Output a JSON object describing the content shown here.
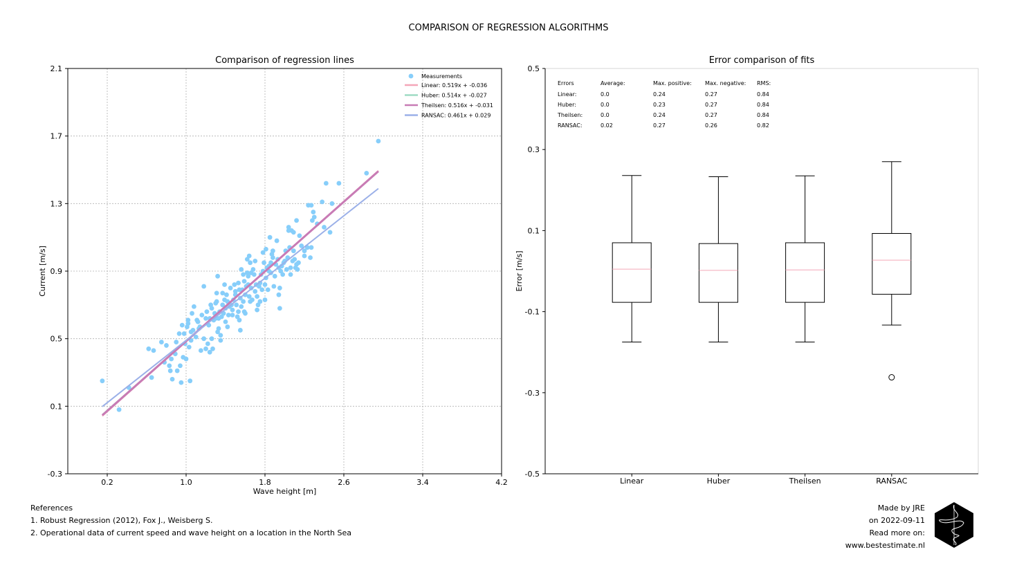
{
  "suptitle": "COMPARISON OF REGRESSION ALGORITHMS",
  "chart_data": [
    {
      "type": "scatter",
      "title": "Comparison of regression lines",
      "xlabel": "Wave height [m]",
      "ylabel": "Current [m/s]",
      "xlim": [
        -0.2,
        4.2
      ],
      "ylim": [
        -0.3,
        2.1
      ],
      "xticks": [
        "0.2",
        "1.0",
        "1.8",
        "2.6",
        "3.4",
        "4.2"
      ],
      "xtick_values": [
        0.2,
        1.0,
        1.8,
        2.6,
        3.4,
        4.2
      ],
      "yticks": [
        "-0.3",
        "0.1",
        "0.5",
        "0.9",
        "1.3",
        "1.7",
        "2.1"
      ],
      "ytick_values": [
        -0.3,
        0.1,
        0.5,
        0.9,
        1.3,
        1.7,
        2.1
      ],
      "grid": true,
      "legend_position": "top-right",
      "scatter_series": {
        "name": "Measurements",
        "color": "#87cefa"
      },
      "points": [
        [
          0.15,
          0.25
        ],
        [
          0.32,
          0.08
        ],
        [
          0.42,
          0.21
        ],
        [
          0.62,
          0.44
        ],
        [
          0.65,
          0.27
        ],
        [
          0.67,
          0.43
        ],
        [
          0.75,
          0.48
        ],
        [
          0.78,
          0.36
        ],
        [
          0.8,
          0.46
        ],
        [
          0.83,
          0.34
        ],
        [
          0.84,
          0.31
        ],
        [
          0.85,
          0.38
        ],
        [
          0.86,
          0.26
        ],
        [
          0.89,
          0.41
        ],
        [
          0.9,
          0.48
        ],
        [
          0.91,
          0.31
        ],
        [
          0.93,
          0.53
        ],
        [
          0.94,
          0.34
        ],
        [
          0.95,
          0.24
        ],
        [
          0.96,
          0.58
        ],
        [
          0.97,
          0.39
        ],
        [
          0.98,
          0.53
        ],
        [
          0.99,
          0.47
        ],
        [
          1.0,
          0.38
        ],
        [
          1.01,
          0.57
        ],
        [
          1.02,
          0.61
        ],
        [
          1.02,
          0.59
        ],
        [
          1.03,
          0.45
        ],
        [
          1.04,
          0.25
        ],
        [
          1.05,
          0.49
        ],
        [
          1.05,
          0.54
        ],
        [
          1.06,
          0.65
        ],
        [
          1.07,
          0.55
        ],
        [
          1.08,
          0.69
        ],
        [
          1.1,
          0.51
        ],
        [
          1.11,
          0.61
        ],
        [
          1.12,
          0.6
        ],
        [
          1.13,
          0.56
        ],
        [
          1.14,
          0.57
        ],
        [
          1.15,
          0.43
        ],
        [
          1.16,
          0.64
        ],
        [
          1.18,
          0.5
        ],
        [
          1.18,
          0.81
        ],
        [
          1.2,
          0.44
        ],
        [
          1.2,
          0.62
        ],
        [
          1.21,
          0.66
        ],
        [
          1.22,
          0.47
        ],
        [
          1.23,
          0.58
        ],
        [
          1.24,
          0.42
        ],
        [
          1.24,
          0.62
        ],
        [
          1.25,
          0.7
        ],
        [
          1.26,
          0.5
        ],
        [
          1.26,
          0.68
        ],
        [
          1.27,
          0.44
        ],
        [
          1.28,
          0.61
        ],
        [
          1.29,
          0.65
        ],
        [
          1.3,
          0.62
        ],
        [
          1.3,
          0.71
        ],
        [
          1.31,
          0.77
        ],
        [
          1.31,
          0.72
        ],
        [
          1.32,
          0.54
        ],
        [
          1.32,
          0.87
        ],
        [
          1.33,
          0.56
        ],
        [
          1.33,
          0.62
        ],
        [
          1.34,
          0.66
        ],
        [
          1.35,
          0.52
        ],
        [
          1.35,
          0.49
        ],
        [
          1.36,
          0.63
        ],
        [
          1.37,
          0.77
        ],
        [
          1.37,
          0.7
        ],
        [
          1.38,
          0.65
        ],
        [
          1.39,
          0.73
        ],
        [
          1.39,
          0.82
        ],
        [
          1.4,
          0.6
        ],
        [
          1.4,
          0.68
        ],
        [
          1.41,
          0.76
        ],
        [
          1.42,
          0.72
        ],
        [
          1.42,
          0.57
        ],
        [
          1.43,
          0.64
        ],
        [
          1.44,
          0.69
        ],
        [
          1.45,
          0.8
        ],
        [
          1.46,
          0.7
        ],
        [
          1.47,
          0.67
        ],
        [
          1.47,
          0.64
        ],
        [
          1.48,
          0.73
        ],
        [
          1.49,
          0.82
        ],
        [
          1.5,
          0.76
        ],
        [
          1.5,
          0.78
        ],
        [
          1.51,
          0.7
        ],
        [
          1.52,
          0.63
        ],
        [
          1.53,
          0.66
        ],
        [
          1.53,
          0.83
        ],
        [
          1.54,
          0.61
        ],
        [
          1.54,
          0.79
        ],
        [
          1.55,
          0.55
        ],
        [
          1.55,
          0.74
        ],
        [
          1.56,
          0.69
        ],
        [
          1.56,
          0.91
        ],
        [
          1.57,
          0.79
        ],
        [
          1.58,
          0.72
        ],
        [
          1.58,
          0.88
        ],
        [
          1.59,
          0.84
        ],
        [
          1.59,
          0.66
        ],
        [
          1.6,
          0.65
        ],
        [
          1.6,
          0.76
        ],
        [
          1.61,
          0.81
        ],
        [
          1.62,
          0.97
        ],
        [
          1.62,
          0.89
        ],
        [
          1.63,
          0.82
        ],
        [
          1.63,
          0.87
        ],
        [
          1.64,
          0.75
        ],
        [
          1.64,
          0.99
        ],
        [
          1.65,
          0.95
        ],
        [
          1.65,
          0.72
        ],
        [
          1.66,
          0.8
        ],
        [
          1.66,
          0.89
        ],
        [
          1.67,
          0.73
        ],
        [
          1.68,
          0.91
        ],
        [
          1.69,
          0.88
        ],
        [
          1.7,
          0.78
        ],
        [
          1.7,
          0.96
        ],
        [
          1.71,
          0.82
        ],
        [
          1.72,
          0.67
        ],
        [
          1.72,
          0.75
        ],
        [
          1.73,
          0.7
        ],
        [
          1.74,
          0.81
        ],
        [
          1.75,
          0.83
        ],
        [
          1.75,
          0.72
        ],
        [
          1.76,
          0.88
        ],
        [
          1.77,
          0.79
        ],
        [
          1.78,
          0.9
        ],
        [
          1.78,
          1.01
        ],
        [
          1.79,
          0.95
        ],
        [
          1.8,
          0.82
        ],
        [
          1.8,
          0.73
        ],
        [
          1.81,
          0.86
        ],
        [
          1.81,
          1.03
        ],
        [
          1.82,
          0.92
        ],
        [
          1.83,
          0.79
        ],
        [
          1.84,
          0.9
        ],
        [
          1.84,
          0.93
        ],
        [
          1.85,
          1.1
        ],
        [
          1.86,
          0.89
        ],
        [
          1.86,
          0.95
        ],
        [
          1.87,
          1.0
        ],
        [
          1.88,
          0.98
        ],
        [
          1.88,
          1.02
        ],
        [
          1.89,
          0.81
        ],
        [
          1.9,
          0.87
        ],
        [
          1.91,
          0.94
        ],
        [
          1.92,
          1.08
        ],
        [
          1.93,
          0.97
        ],
        [
          1.94,
          0.92
        ],
        [
          1.94,
          0.76
        ],
        [
          1.95,
          0.68
        ],
        [
          1.95,
          0.8
        ],
        [
          1.96,
          0.9
        ],
        [
          1.97,
          0.93
        ],
        [
          1.98,
          0.88
        ],
        [
          1.99,
          0.95
        ],
        [
          2.0,
          0.96
        ],
        [
          2.01,
          1.02
        ],
        [
          2.02,
          0.91
        ],
        [
          2.03,
          0.98
        ],
        [
          2.04,
          1.14
        ],
        [
          2.04,
          1.16
        ],
        [
          2.05,
          1.04
        ],
        [
          2.06,
          0.92
        ],
        [
          2.06,
          0.88
        ],
        [
          2.07,
          1.14
        ],
        [
          2.08,
          0.96
        ],
        [
          2.09,
          1.02
        ],
        [
          2.09,
          1.13
        ],
        [
          2.1,
          0.97
        ],
        [
          2.11,
          0.92
        ],
        [
          2.12,
          1.2
        ],
        [
          2.12,
          0.94
        ],
        [
          2.13,
          0.91
        ],
        [
          2.14,
          0.95
        ],
        [
          2.15,
          1.11
        ],
        [
          2.17,
          1.05
        ],
        [
          2.2,
          0.99
        ],
        [
          2.2,
          1.02
        ],
        [
          2.23,
          1.04
        ],
        [
          2.24,
          1.29
        ],
        [
          2.26,
          0.98
        ],
        [
          2.27,
          1.04
        ],
        [
          2.27,
          1.29
        ],
        [
          2.28,
          1.2
        ],
        [
          2.29,
          1.25
        ],
        [
          2.3,
          1.22
        ],
        [
          2.33,
          1.18
        ],
        [
          2.38,
          1.31
        ],
        [
          2.4,
          1.16
        ],
        [
          2.42,
          1.42
        ],
        [
          2.46,
          1.13
        ],
        [
          2.48,
          1.3
        ],
        [
          2.55,
          1.42
        ],
        [
          2.83,
          1.48
        ],
        [
          2.95,
          1.67
        ]
      ],
      "lines": [
        {
          "name": "Linear: 0.519x + -0.036",
          "slope": 0.519,
          "intercept": -0.036,
          "color": "#f4a6b8",
          "width": 2
        },
        {
          "name": "Huber: 0.514x + -0.027",
          "slope": 0.514,
          "intercept": -0.027,
          "color": "#9fdbc4",
          "width": 2
        },
        {
          "name": "Theilsen: 0.516x + -0.031",
          "slope": 0.516,
          "intercept": -0.031,
          "color": "#c87bb5",
          "width": 3
        },
        {
          "name": "RANSAC: 0.461x + 0.029",
          "slope": 0.461,
          "intercept": 0.029,
          "color": "#9bb0e8",
          "width": 2
        }
      ],
      "line_xrange": [
        0.15,
        2.95
      ]
    },
    {
      "type": "box",
      "title": "Error comparison of fits",
      "ylabel": "Error [m/s]",
      "ylim": [
        -0.5,
        0.5
      ],
      "yticks": [
        "-0.5",
        "-0.3",
        "-0.1",
        "0.1",
        "0.3",
        "0.5"
      ],
      "ytick_values": [
        -0.5,
        -0.3,
        -0.1,
        0.1,
        0.3,
        0.5
      ],
      "categories": [
        "Linear",
        "Huber",
        "Theilsen",
        "RANSAC"
      ],
      "boxes": [
        {
          "name": "Linear",
          "whisker_low": -0.175,
          "q1": -0.077,
          "median": 0.005,
          "q3": 0.07,
          "whisker_high": 0.236,
          "outliers": []
        },
        {
          "name": "Huber",
          "whisker_low": -0.175,
          "q1": -0.077,
          "median": 0.002,
          "q3": 0.068,
          "whisker_high": 0.233,
          "outliers": []
        },
        {
          "name": "Theilsen",
          "whisker_low": -0.175,
          "q1": -0.077,
          "median": 0.003,
          "q3": 0.07,
          "whisker_high": 0.235,
          "outliers": []
        },
        {
          "name": "RANSAC",
          "whisker_low": -0.133,
          "q1": -0.057,
          "median": 0.027,
          "q3": 0.093,
          "whisker_high": 0.27,
          "outliers": [
            -0.262
          ]
        }
      ],
      "median_color": "#f4a6b8",
      "error_table": {
        "headers": [
          "Errors",
          "Average:",
          "Max. positive:",
          "Max. negative:",
          "RMS:"
        ],
        "rows": [
          [
            "Linear:",
            "0.0",
            "0.24",
            "0.27",
            "0.84"
          ],
          [
            "Huber:",
            "0.0",
            "0.23",
            "0.27",
            "0.84"
          ],
          [
            "Theilsen:",
            "0.0",
            "0.24",
            "0.27",
            "0.84"
          ],
          [
            "RANSAC:",
            "0.02",
            "0.27",
            "0.26",
            "0.82"
          ]
        ]
      }
    }
  ],
  "references": {
    "heading": "References",
    "items": [
      "1. Robust Regression (2012), Fox J., Weisberg S.",
      "2. Operational data of current speed and wave height on a location in the North Sea"
    ]
  },
  "credits": {
    "made_by": "Made by JRE",
    "date": "on 2022-09-11",
    "read_more": "Read more on:",
    "website": "www.bestestimate.nl"
  }
}
